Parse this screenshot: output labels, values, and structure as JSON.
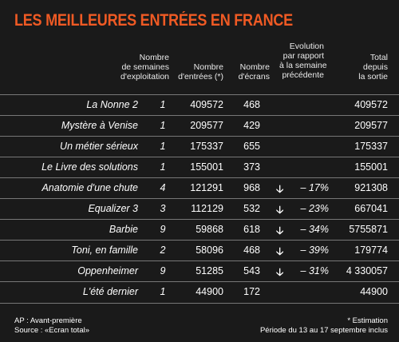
{
  "title": "LES MEILLEURES ENTRÉES EN FRANCE",
  "headers": {
    "weeks": [
      "Nombre",
      "de semaines",
      "d'exploitation"
    ],
    "entries": [
      "Nombre",
      "d'entrées (*)"
    ],
    "screens": [
      "Nombre",
      "d'écrans"
    ],
    "evolution": [
      "Evolution",
      "par rapport",
      "à la semaine",
      "précédente"
    ],
    "total": [
      "Total",
      "depuis",
      "la sortie"
    ]
  },
  "rows": [
    {
      "title": "La Nonne 2",
      "weeks": "1",
      "entries": "409572",
      "screens": "468",
      "arrow": "",
      "evolution": "",
      "total": "409572"
    },
    {
      "title": "Mystère à Venise",
      "weeks": "1",
      "entries": "209577",
      "screens": "429",
      "arrow": "",
      "evolution": "",
      "total": "209577"
    },
    {
      "title": "Un métier sérieux",
      "weeks": "1",
      "entries": "175337",
      "screens": "655",
      "arrow": "",
      "evolution": "",
      "total": "175337"
    },
    {
      "title": "Le Livre des solutions",
      "weeks": "1",
      "entries": "155001",
      "screens": "373",
      "arrow": "",
      "evolution": "",
      "total": "155001"
    },
    {
      "title": "Anatomie d'une chute",
      "weeks": "4",
      "entries": "121291",
      "screens": "968",
      "arrow": "🡣",
      "evolution": "– 17%",
      "total": "921308"
    },
    {
      "title": "Equalizer 3",
      "weeks": "3",
      "entries": "112129",
      "screens": "532",
      "arrow": "🡣",
      "evolution": "– 23%",
      "total": "667041"
    },
    {
      "title": "Barbie",
      "weeks": "9",
      "entries": "59868",
      "screens": "618",
      "arrow": "🡣",
      "evolution": "– 34%",
      "total": "5755871"
    },
    {
      "title": "Toni, en famille",
      "weeks": "2",
      "entries": "58096",
      "screens": "468",
      "arrow": "🡣",
      "evolution": "– 39%",
      "total": "179774"
    },
    {
      "title": "Oppenheimer",
      "weeks": "9",
      "entries": "51285",
      "screens": "543",
      "arrow": "🡣",
      "evolution": "– 31%",
      "total": "4 330057"
    },
    {
      "title": "L'été dernier",
      "weeks": "1",
      "entries": "44900",
      "screens": "172",
      "arrow": "",
      "evolution": "",
      "total": "44900"
    }
  ],
  "footer": {
    "left": [
      "AP : Avant-première",
      "Source : «Ecran total»"
    ],
    "right": [
      "* Estimation",
      "Période du 13 au 17 septembre inclus"
    ]
  },
  "colors": {
    "title": "#ef5a24",
    "background": "#1a1a1a",
    "rule": "#777777"
  }
}
